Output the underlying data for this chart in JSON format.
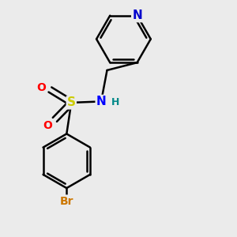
{
  "background_color": "#ebebeb",
  "bond_color": "#000000",
  "atom_colors": {
    "N_sulfonamide": "#0000ff",
    "N_pyridine": "#0000cc",
    "S": "#cccc00",
    "O": "#ff0000",
    "Br": "#cc7700",
    "H": "#008888"
  },
  "bond_width": 1.8,
  "figsize": [
    3.0,
    3.0
  ],
  "dpi": 100,
  "xlim": [
    0.0,
    1.0
  ],
  "ylim": [
    0.0,
    1.0
  ]
}
